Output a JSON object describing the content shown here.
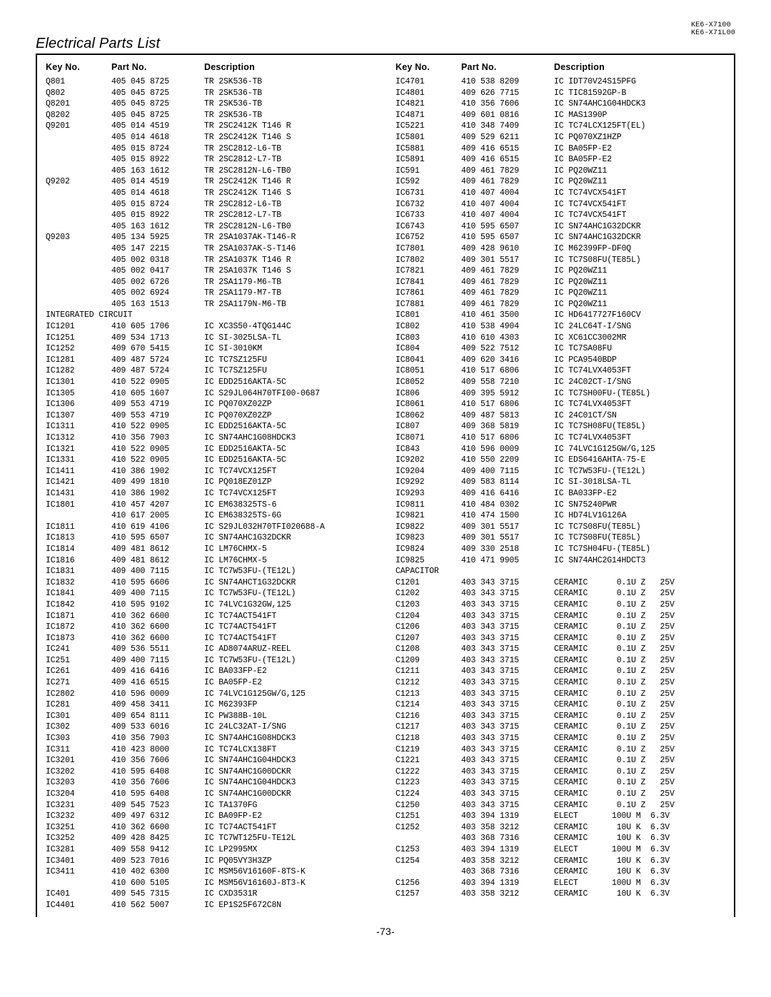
{
  "header": {
    "model1": "KE6-X7100",
    "model2": "KE6-X71L00",
    "title": "Electrical Parts List",
    "col_headers": {
      "key": "Key No.",
      "part": "Part No.",
      "desc": "Description"
    },
    "page": "-73-"
  },
  "left": [
    {
      "k": "Q801",
      "p": "405 045 8725",
      "d": "TR 2SK536-TB"
    },
    {
      "k": "Q802",
      "p": "405 045 8725",
      "d": "TR 2SK536-TB"
    },
    {
      "k": "Q8201",
      "p": "405 045 8725",
      "d": "TR 2SK536-TB"
    },
    {
      "k": "Q8202",
      "p": "405 045 8725",
      "d": "TR 2SK536-TB"
    },
    {
      "k": "Q9201",
      "p": "405 014 4519",
      "d": "TR 2SC2412K T146 R"
    },
    {
      "k": "",
      "p": "405 014 4618",
      "d": "TR 2SC2412K T146 S"
    },
    {
      "k": "",
      "p": "405 015 8724",
      "d": "TR 2SC2812-L6-TB"
    },
    {
      "k": "",
      "p": "405 015 8922",
      "d": "TR 2SC2812-L7-TB"
    },
    {
      "k": "",
      "p": "405 163 1612",
      "d": "TR 2SC2812N-L6-TB0"
    },
    {
      "k": "Q9202",
      "p": "405 014 4519",
      "d": "TR 2SC2412K T146 R"
    },
    {
      "k": "",
      "p": "405 014 4618",
      "d": "TR 2SC2412K T146 S"
    },
    {
      "k": "",
      "p": "405 015 8724",
      "d": "TR 2SC2812-L6-TB"
    },
    {
      "k": "",
      "p": "405 015 8922",
      "d": "TR 2SC2812-L7-TB"
    },
    {
      "k": "",
      "p": "405 163 1612",
      "d": "TR 2SC2812N-L6-TB0"
    },
    {
      "k": "Q9203",
      "p": "405 134 5925",
      "d": "TR 2SA1037AK-T146-R"
    },
    {
      "k": "",
      "p": "405 147 2215",
      "d": "TR 2SA1037AK-S-T146"
    },
    {
      "k": "",
      "p": "405 002 0318",
      "d": "TR 2SA1037K T146 R"
    },
    {
      "k": "",
      "p": "405 002 0417",
      "d": "TR 2SA1037K T146 S"
    },
    {
      "k": "",
      "p": "405 002 6726",
      "d": "TR 2SA1179-M6-TB"
    },
    {
      "k": "",
      "p": "405 002 6924",
      "d": "TR 2SA1179-M7-TB"
    },
    {
      "k": "",
      "p": "405 163 1513",
      "d": "TR 2SA1179N-M6-TB"
    },
    {
      "section": "INTEGRATED CIRCUIT"
    },
    {
      "k": "IC1201",
      "p": "410 605 1706",
      "d": "IC XC3S50-4TQG144C"
    },
    {
      "k": "IC1251",
      "p": "409 534 1713",
      "d": "IC SI-3025LSA-TL"
    },
    {
      "k": "IC1252",
      "p": "409 670 5415",
      "d": "IC SI-3010KM"
    },
    {
      "k": "IC1281",
      "p": "409 487 5724",
      "d": "IC TC7SZ125FU"
    },
    {
      "k": "IC1282",
      "p": "409 487 5724",
      "d": "IC TC7SZ125FU"
    },
    {
      "k": "IC1301",
      "p": "410 522 0905",
      "d": "IC EDD2516AKTA-5C"
    },
    {
      "k": "IC1305",
      "p": "410 605 1607",
      "d": "IC S29JL064H70TFI00-0687"
    },
    {
      "k": "IC1306",
      "p": "409 553 4719",
      "d": "IC PQ070XZ02ZP"
    },
    {
      "k": "IC1307",
      "p": "409 553 4719",
      "d": "IC PQ070XZ02ZP"
    },
    {
      "k": "IC1311",
      "p": "410 522 0905",
      "d": "IC EDD2516AKTA-5C"
    },
    {
      "k": "IC1312",
      "p": "410 356 7903",
      "d": "IC SN74AHC1G08HDCK3"
    },
    {
      "k": "IC1321",
      "p": "410 522 0905",
      "d": "IC EDD2516AKTA-5C"
    },
    {
      "k": "IC1331",
      "p": "410 522 0905",
      "d": "IC EDD2516AKTA-5C"
    },
    {
      "k": "IC1411",
      "p": "410 386 1902",
      "d": "IC TC74VCX125FT"
    },
    {
      "k": "IC1421",
      "p": "409 499 1810",
      "d": "IC PQ018EZ01ZP"
    },
    {
      "k": "IC1431",
      "p": "410 386 1902",
      "d": "IC TC74VCX125FT"
    },
    {
      "k": "IC1801",
      "p": "410 457 4207",
      "d": "IC EM638325TS-6"
    },
    {
      "k": "",
      "p": "410 617 2005",
      "d": "IC EM638325TS-6G"
    },
    {
      "k": "IC1811",
      "p": "410 619 4106",
      "d": "IC S29JL032H70TFI020688-A"
    },
    {
      "k": "IC1813",
      "p": "410 595 6507",
      "d": "IC SN74AHC1G32DCKR"
    },
    {
      "k": "IC1814",
      "p": "409 481 8612",
      "d": "IC LM76CHMX-5"
    },
    {
      "k": "IC1816",
      "p": "409 481 8612",
      "d": "IC LM76CHMX-5"
    },
    {
      "k": "IC1831",
      "p": "409 400 7115",
      "d": "IC TC7W53FU-(TE12L)"
    },
    {
      "k": "IC1832",
      "p": "410 595 6606",
      "d": "IC SN74AHCT1G32DCKR"
    },
    {
      "k": "IC1841",
      "p": "409 400 7115",
      "d": "IC TC7W53FU-(TE12L)"
    },
    {
      "k": "IC1842",
      "p": "410 595 9102",
      "d": "IC 74LVC1G32GW,125"
    },
    {
      "k": "IC1871",
      "p": "410 362 6600",
      "d": "IC TC74ACT541FT"
    },
    {
      "k": "IC1872",
      "p": "410 362 6600",
      "d": "IC TC74ACT541FT"
    },
    {
      "k": "IC1873",
      "p": "410 362 6600",
      "d": "IC TC74ACT541FT"
    },
    {
      "k": "IC241",
      "p": "409 536 5511",
      "d": "IC AD8074ARUZ-REEL"
    },
    {
      "k": "IC251",
      "p": "409 400 7115",
      "d": "IC TC7W53FU-(TE12L)"
    },
    {
      "k": "IC261",
      "p": "409 416 6416",
      "d": "IC BA033FP-E2"
    },
    {
      "k": "IC271",
      "p": "409 416 6515",
      "d": "IC BA05FP-E2"
    },
    {
      "k": "IC2802",
      "p": "410 596 0009",
      "d": "IC 74LVC1G125GW/G,125"
    },
    {
      "k": "IC281",
      "p": "409 458 3411",
      "d": "IC M62393FP"
    },
    {
      "k": "IC301",
      "p": "409 654 8111",
      "d": "IC PW388B-10L"
    },
    {
      "k": "IC302",
      "p": "409 533 6016",
      "d": "IC 24LC32AT-I/SNG"
    },
    {
      "k": "IC303",
      "p": "410 356 7903",
      "d": "IC SN74AHC1G08HDCK3"
    },
    {
      "k": "IC311",
      "p": "410 423 8000",
      "d": "IC TC74LCX138FT"
    },
    {
      "k": "IC3201",
      "p": "410 356 7606",
      "d": "IC SN74AHC1G04HDCK3"
    },
    {
      "k": "IC3202",
      "p": "410 595 6408",
      "d": "IC SN74AHC1G00DCKR"
    },
    {
      "k": "IC3203",
      "p": "410 356 7606",
      "d": "IC SN74AHC1G04HDCK3"
    },
    {
      "k": "IC3204",
      "p": "410 595 6408",
      "d": "IC SN74AHC1G00DCKR"
    },
    {
      "k": "IC3231",
      "p": "409 545 7523",
      "d": "IC TA1370FG"
    },
    {
      "k": "IC3232",
      "p": "409 497 6312",
      "d": "IC BA09FP-E2"
    },
    {
      "k": "IC3251",
      "p": "410 362 6600",
      "d": "IC TC74ACT541FT"
    },
    {
      "k": "IC3252",
      "p": "409 428 8425",
      "d": "IC TC7WT125FU-TE12L"
    },
    {
      "k": "IC3281",
      "p": "409 558 9412",
      "d": "IC LP2995MX"
    },
    {
      "k": "IC3401",
      "p": "409 523 7016",
      "d": "IC PQ05VY3H3ZP"
    },
    {
      "k": "IC3411",
      "p": "410 402 6300",
      "d": "IC MSM56V16160F-8TS-K"
    },
    {
      "k": "",
      "p": "410 600 5105",
      "d": "IC MSM56V16160J-8T3-K"
    },
    {
      "k": "IC401",
      "p": "409 545 7315",
      "d": "IC CXD3531R"
    },
    {
      "k": "IC4401",
      "p": "410 562 5007",
      "d": "IC EP1S25F672C8N"
    }
  ],
  "right": [
    {
      "k": "IC4701",
      "p": "410 538 8209",
      "d": "IC IDT70V24S15PFG"
    },
    {
      "k": "IC4801",
      "p": "409 626 7715",
      "d": "IC TIC81592GP-B"
    },
    {
      "k": "IC4821",
      "p": "410 356 7606",
      "d": "IC SN74AHC1G04HDCK3"
    },
    {
      "k": "IC4871",
      "p": "409 601 0816",
      "d": "IC MAS1390P"
    },
    {
      "k": "IC5221",
      "p": "410 348 7409",
      "d": "IC TC74LCX125FT(EL)"
    },
    {
      "k": "IC5801",
      "p": "409 529 6211",
      "d": "IC PQ070XZ1HZP"
    },
    {
      "k": "IC5881",
      "p": "409 416 6515",
      "d": "IC BA05FP-E2"
    },
    {
      "k": "IC5891",
      "p": "409 416 6515",
      "d": "IC BA05FP-E2"
    },
    {
      "k": "IC591",
      "p": "409 461 7829",
      "d": "IC PQ20WZ11"
    },
    {
      "k": "IC592",
      "p": "409 461 7829",
      "d": "IC PQ20WZ11"
    },
    {
      "k": "IC6731",
      "p": "410 407 4004",
      "d": "IC TC74VCX541FT"
    },
    {
      "k": "IC6732",
      "p": "410 407 4004",
      "d": "IC TC74VCX541FT"
    },
    {
      "k": "IC6733",
      "p": "410 407 4004",
      "d": "IC TC74VCX541FT"
    },
    {
      "k": "IC6743",
      "p": "410 595 6507",
      "d": "IC SN74AHC1G32DCKR"
    },
    {
      "k": "IC6752",
      "p": "410 595 6507",
      "d": "IC SN74AHC1G32DCKR"
    },
    {
      "k": "IC7801",
      "p": "409 428 9610",
      "d": "IC M62399FP-DF0Q"
    },
    {
      "k": "IC7802",
      "p": "409 301 5517",
      "d": "IC TC7S08FU(TE85L)"
    },
    {
      "k": "IC7821",
      "p": "409 461 7829",
      "d": "IC PQ20WZ11"
    },
    {
      "k": "IC7841",
      "p": "409 461 7829",
      "d": "IC PQ20WZ11"
    },
    {
      "k": "IC7861",
      "p": "409 461 7829",
      "d": "IC PQ20WZ11"
    },
    {
      "k": "IC7881",
      "p": "409 461 7829",
      "d": "IC PQ20WZ11"
    },
    {
      "k": "IC801",
      "p": "410 461 3500",
      "d": "IC HD6417727F160CV"
    },
    {
      "k": "IC802",
      "p": "410 538 4904",
      "d": "IC 24LC64T-I/SNG"
    },
    {
      "k": "IC803",
      "p": "410 610 4303",
      "d": "IC XC61CC3002MR"
    },
    {
      "k": "IC804",
      "p": "409 522 7512",
      "d": "IC TC7SA08FU"
    },
    {
      "k": "IC8041",
      "p": "409 620 3416",
      "d": "IC PCA9540BDP"
    },
    {
      "k": "IC8051",
      "p": "410 517 6806",
      "d": "IC TC74LVX4053FT"
    },
    {
      "k": "IC8052",
      "p": "409 558 7210",
      "d": "IC 24C02CT-I/SNG"
    },
    {
      "k": "IC806",
      "p": "409 395 5912",
      "d": "IC TC7SH00FU-(TE85L)"
    },
    {
      "k": "IC8061",
      "p": "410 517 6806",
      "d": "IC TC74LVX4053FT"
    },
    {
      "k": "IC8062",
      "p": "409 487 5813",
      "d": "IC 24C01CT/SN"
    },
    {
      "k": "IC807",
      "p": "409 368 5819",
      "d": "IC TC7SH08FU(TE85L)"
    },
    {
      "k": "IC8071",
      "p": "410 517 6806",
      "d": "IC TC74LVX4053FT"
    },
    {
      "k": "IC843",
      "p": "410 596 0009",
      "d": "IC 74LVC1G125GW/G,125"
    },
    {
      "k": "IC9202",
      "p": "410 550 2209",
      "d": "IC EDS6416AHTA-75-E"
    },
    {
      "k": "IC9204",
      "p": "409 400 7115",
      "d": "IC TC7W53FU-(TE12L)"
    },
    {
      "k": "IC9292",
      "p": "409 583 8114",
      "d": "IC SI-3018LSA-TL"
    },
    {
      "k": "IC9293",
      "p": "409 416 6416",
      "d": "IC BA033FP-E2"
    },
    {
      "k": "IC9811",
      "p": "410 484 0302",
      "d": "IC SN75240PWR"
    },
    {
      "k": "IC9821",
      "p": "410 474 1500",
      "d": "IC HD74LV1G126A"
    },
    {
      "k": "IC9822",
      "p": "409 301 5517",
      "d": "IC TC7S08FU(TE85L)"
    },
    {
      "k": "IC9823",
      "p": "409 301 5517",
      "d": "IC TC7S08FU(TE85L)"
    },
    {
      "k": "IC9824",
      "p": "409 330 2518",
      "d": "IC TC7SH04FU-(TE85L)"
    },
    {
      "k": "IC9825",
      "p": "410 471 9905",
      "d": "IC SN74AHC2G14HDCT3"
    },
    {
      "section": "CAPACITOR"
    },
    {
      "k": "C1201",
      "p": "403 343 3715",
      "d": "CERAMIC      0.1U Z   25V"
    },
    {
      "k": "C1202",
      "p": "403 343 3715",
      "d": "CERAMIC      0.1U Z   25V"
    },
    {
      "k": "C1203",
      "p": "403 343 3715",
      "d": "CERAMIC      0.1U Z   25V"
    },
    {
      "k": "C1204",
      "p": "403 343 3715",
      "d": "CERAMIC      0.1U Z   25V"
    },
    {
      "k": "C1206",
      "p": "403 343 3715",
      "d": "CERAMIC      0.1U Z   25V"
    },
    {
      "k": "C1207",
      "p": "403 343 3715",
      "d": "CERAMIC      0.1U Z   25V"
    },
    {
      "k": "C1208",
      "p": "403 343 3715",
      "d": "CERAMIC      0.1U Z   25V"
    },
    {
      "k": "C1209",
      "p": "403 343 3715",
      "d": "CERAMIC      0.1U Z   25V"
    },
    {
      "k": "C1211",
      "p": "403 343 3715",
      "d": "CERAMIC      0.1U Z   25V"
    },
    {
      "k": "C1212",
      "p": "403 343 3715",
      "d": "CERAMIC      0.1U Z   25V"
    },
    {
      "k": "C1213",
      "p": "403 343 3715",
      "d": "CERAMIC      0.1U Z   25V"
    },
    {
      "k": "C1214",
      "p": "403 343 3715",
      "d": "CERAMIC      0.1U Z   25V"
    },
    {
      "k": "C1216",
      "p": "403 343 3715",
      "d": "CERAMIC      0.1U Z   25V"
    },
    {
      "k": "C1217",
      "p": "403 343 3715",
      "d": "CERAMIC      0.1U Z   25V"
    },
    {
      "k": "C1218",
      "p": "403 343 3715",
      "d": "CERAMIC      0.1U Z   25V"
    },
    {
      "k": "C1219",
      "p": "403 343 3715",
      "d": "CERAMIC      0.1U Z   25V"
    },
    {
      "k": "C1221",
      "p": "403 343 3715",
      "d": "CERAMIC      0.1U Z   25V"
    },
    {
      "k": "C1222",
      "p": "403 343 3715",
      "d": "CERAMIC      0.1U Z   25V"
    },
    {
      "k": "C1223",
      "p": "403 343 3715",
      "d": "CERAMIC      0.1U Z   25V"
    },
    {
      "k": "C1224",
      "p": "403 343 3715",
      "d": "CERAMIC      0.1U Z   25V"
    },
    {
      "k": "C1250",
      "p": "403 343 3715",
      "d": "CERAMIC      0.1U Z   25V"
    },
    {
      "k": "C1251",
      "p": "403 394 1319",
      "d": "ELECT       100U M  6.3V"
    },
    {
      "k": "C1252",
      "p": "403 358 3212",
      "d": "CERAMIC      10U K  6.3V"
    },
    {
      "k": "",
      "p": "403 368 7316",
      "d": "CERAMIC      10U K  6.3V"
    },
    {
      "k": "C1253",
      "p": "403 394 1319",
      "d": "ELECT       100U M  6.3V"
    },
    {
      "k": "C1254",
      "p": "403 358 3212",
      "d": "CERAMIC      10U K  6.3V"
    },
    {
      "k": "",
      "p": "403 368 7316",
      "d": "CERAMIC      10U K  6.3V"
    },
    {
      "k": "C1256",
      "p": "403 394 1319",
      "d": "ELECT       100U M  6.3V"
    },
    {
      "k": "C1257",
      "p": "403 358 3212",
      "d": "CERAMIC      10U K  6.3V"
    }
  ]
}
